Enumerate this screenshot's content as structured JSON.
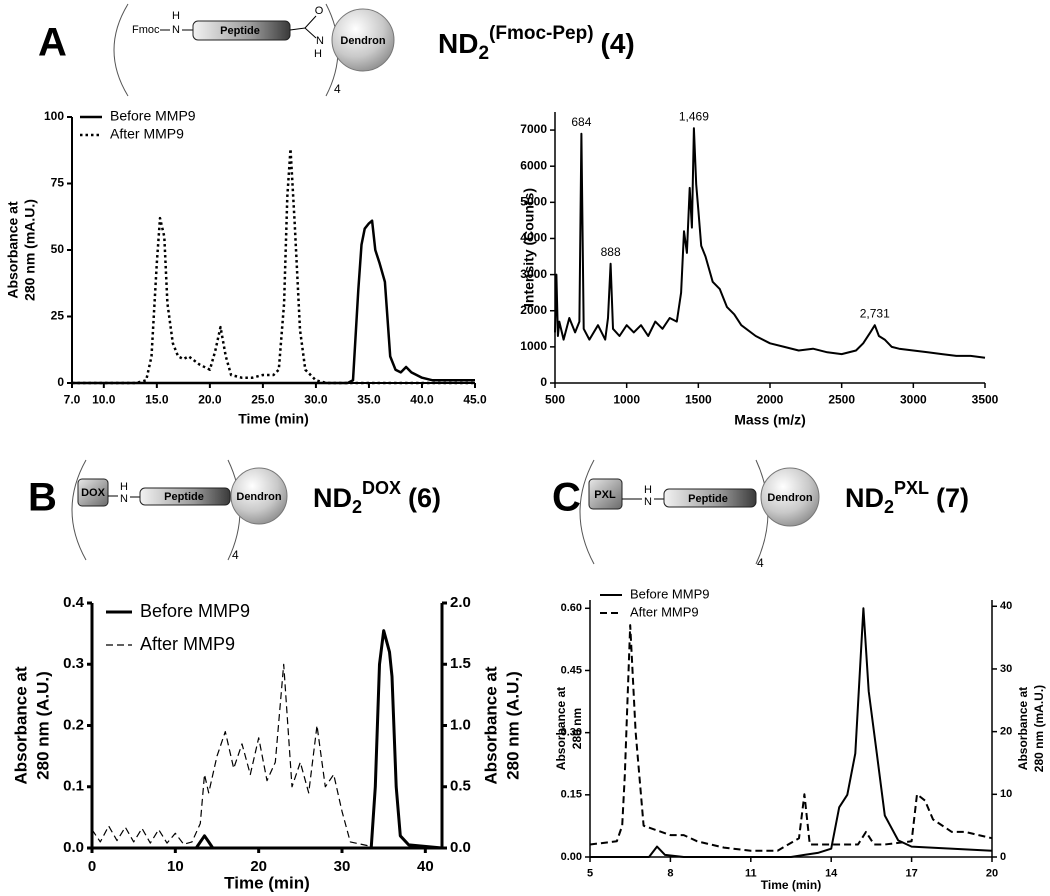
{
  "panels": [
    {
      "label": "A",
      "schematic": {
        "cap": "Fmoc",
        "n1": "N",
        "h1": "H",
        "peptide": "Peptide",
        "o": "O",
        "n2": "N",
        "h2": "H",
        "dendron": "Dendron",
        "count": "4"
      },
      "compound": {
        "base": "ND",
        "sub": "2",
        "sup": "(Fmoc-Pep)",
        "rest": "(4)"
      }
    },
    {
      "label": "B",
      "schematic": {
        "cap": "DOX",
        "h1": "H",
        "n1": "N",
        "peptide": "Peptide",
        "dendron": "Dendron",
        "count": "4"
      },
      "compound": {
        "base": "ND",
        "sub": "2",
        "sup": "DOX",
        "rest": "(6)"
      }
    },
    {
      "label": "C",
      "schematic": {
        "cap": "PXL",
        "h1": "H",
        "n1": "N",
        "peptide": "Peptide",
        "dendron": "Dendron",
        "count": "4"
      },
      "compound": {
        "base": "ND",
        "sub": "2",
        "sup": "PXL",
        "rest": "(7)"
      }
    }
  ],
  "chart_data": [
    {
      "type": "line",
      "x_label": "Time (min)",
      "y_label": [
        "Absorbance at",
        "280 nm (mA.U.)"
      ],
      "xlim": [
        7,
        45
      ],
      "xticks": [
        {
          "value": 7,
          "label": "7.0"
        },
        {
          "value": 10,
          "label": "10.0"
        },
        {
          "value": 15,
          "label": "15.0"
        },
        {
          "value": 20,
          "label": "20.0"
        },
        {
          "value": 25,
          "label": "25.0"
        },
        {
          "value": 30,
          "label": "30.0"
        },
        {
          "value": 35,
          "label": "35.0"
        },
        {
          "value": 40,
          "label": "40.0"
        },
        {
          "value": 45,
          "label": "45.0"
        }
      ],
      "ylim": [
        0,
        100
      ],
      "yticks": [
        0,
        25,
        50,
        75,
        100
      ],
      "legend": "upper left",
      "series": [
        {
          "name": "Before MMP9",
          "color": "#000000",
          "line_style": "solid",
          "x": [
            7,
            33,
            33.5,
            34,
            34.3,
            34.6,
            35,
            35.3,
            35.6,
            36,
            36.5,
            37,
            37.5,
            38,
            38.5,
            39,
            40,
            41,
            42,
            45
          ],
          "values": [
            0,
            0,
            1,
            35,
            52,
            58,
            60,
            61,
            50,
            45,
            38,
            10,
            5,
            4,
            6,
            4,
            2,
            1,
            1,
            1
          ]
        },
        {
          "name": "After MMP9",
          "color": "#000000",
          "line_style": "dotted",
          "x": [
            7,
            13,
            14,
            14.5,
            15,
            15.3,
            15.7,
            16,
            16.5,
            17,
            17.5,
            18,
            19,
            20,
            20.5,
            21,
            21.5,
            22,
            23,
            24,
            25,
            26,
            26.5,
            27,
            27.3,
            27.6,
            28,
            28.5,
            29,
            30,
            31,
            33,
            45
          ],
          "values": [
            0,
            0,
            1,
            10,
            45,
            62,
            55,
            30,
            15,
            10,
            9,
            10,
            7,
            5,
            12,
            21,
            10,
            3,
            2,
            2,
            3,
            3,
            5,
            30,
            70,
            88,
            60,
            20,
            5,
            1,
            0,
            0,
            0
          ]
        }
      ]
    },
    {
      "type": "line",
      "x_label": "Mass  (m/z)",
      "y_label": [
        "Intensity (Counts)"
      ],
      "xlim": [
        500,
        3500
      ],
      "xticks": [
        500,
        1000,
        1500,
        2000,
        2500,
        3000,
        3500
      ],
      "ylim": [
        0,
        7500
      ],
      "yticks": [
        0,
        1000,
        2000,
        3000,
        4000,
        5000,
        6000,
        7000
      ],
      "series": [
        {
          "name": "Spectrum",
          "color": "#000000",
          "line_style": "solid",
          "x": [
            500,
            510,
            520,
            530,
            560,
            600,
            640,
            670,
            684,
            700,
            740,
            800,
            850,
            870,
            888,
            905,
            950,
            1000,
            1050,
            1100,
            1150,
            1200,
            1250,
            1300,
            1350,
            1380,
            1400,
            1420,
            1440,
            1455,
            1469,
            1485,
            1500,
            1520,
            1550,
            1600,
            1650,
            1700,
            1750,
            1800,
            1900,
            2000,
            2100,
            2200,
            2300,
            2400,
            2500,
            2600,
            2650,
            2700,
            2731,
            2760,
            2800,
            2850,
            2900,
            3000,
            3100,
            3200,
            3300,
            3400,
            3500
          ],
          "values": [
            1400,
            3000,
            1300,
            1700,
            1200,
            1800,
            1400,
            1700,
            6900,
            1500,
            1200,
            1600,
            1200,
            1800,
            3300,
            1500,
            1300,
            1600,
            1400,
            1600,
            1300,
            1700,
            1500,
            1800,
            1700,
            2500,
            4200,
            3600,
            5400,
            4300,
            7050,
            5500,
            4800,
            3800,
            3500,
            2800,
            2600,
            2100,
            1900,
            1600,
            1300,
            1100,
            1000,
            900,
            950,
            850,
            800,
            900,
            1100,
            1400,
            1600,
            1300,
            1200,
            1000,
            950,
            900,
            850,
            800,
            750,
            750,
            700
          ]
        }
      ],
      "annotations": [
        {
          "label": "684",
          "x": 684,
          "y": 6900
        },
        {
          "label": "888",
          "x": 888,
          "y": 3300
        },
        {
          "label": "1,469",
          "x": 1469,
          "y": 7050
        },
        {
          "label": "2,731",
          "x": 2731,
          "y": 1600
        }
      ]
    },
    {
      "type": "line",
      "x_label": "Time (min)",
      "y_label": [
        "Absorbance at",
        "280 nm (A.U.)"
      ],
      "y2_label": [
        "Absorbance at",
        "280 nm (A.U.)"
      ],
      "xlim": [
        0,
        42
      ],
      "xticks": [
        0,
        10,
        20,
        30,
        40
      ],
      "ylim": [
        0,
        0.4
      ],
      "yticks": [
        {
          "value": 0,
          "label": "0.0"
        },
        0.1,
        0.2,
        0.3,
        0.4
      ],
      "y2lim": [
        0,
        2
      ],
      "y2ticks": [
        {
          "value": 0,
          "label": "0.0"
        },
        0.5,
        {
          "value": 1,
          "label": "1.0"
        },
        1.5,
        {
          "value": 2,
          "label": "2.0"
        }
      ],
      "legend": "upper left",
      "series": [
        {
          "name": "Before MMP9",
          "color": "#000000",
          "line_style": "solid",
          "x": [
            0,
            12.5,
            13,
            13.5,
            14,
            14.5,
            33.5,
            34,
            34.5,
            35,
            35.3,
            35.7,
            36,
            36.5,
            37,
            38,
            42
          ],
          "values": [
            0,
            0,
            0.01,
            0.02,
            0.01,
            0,
            0,
            0.1,
            0.3,
            0.355,
            0.34,
            0.32,
            0.28,
            0.1,
            0.02,
            0.005,
            0
          ]
        },
        {
          "name": "After MMP9",
          "color": "#000000",
          "line_style": "dashed",
          "axis": "y2",
          "x": [
            0,
            1,
            2,
            3,
            4,
            5,
            6,
            7,
            8,
            9,
            10,
            11,
            12,
            13,
            13.5,
            14,
            15,
            16,
            17,
            18,
            19,
            20,
            21,
            22,
            23,
            24,
            25,
            26,
            27,
            28,
            29,
            30,
            31,
            33,
            34,
            42
          ],
          "values": [
            0.15,
            0.05,
            0.18,
            0.06,
            0.17,
            0.05,
            0.16,
            0.04,
            0.15,
            0.04,
            0.12,
            0.03,
            0.05,
            0.2,
            0.6,
            0.45,
            0.75,
            0.95,
            0.65,
            0.85,
            0.6,
            0.9,
            0.55,
            0.7,
            1.5,
            0.5,
            0.7,
            0.45,
            1.0,
            0.5,
            0.6,
            0.3,
            0.05,
            0.02,
            0,
            0
          ]
        }
      ]
    },
    {
      "type": "line",
      "x_label": "Time (min)",
      "y_label": [
        "Absorbance at",
        "280 nm"
      ],
      "y2_label": [
        "Absorbance at",
        "280 nm (mA.U.)"
      ],
      "xlim": [
        5,
        20
      ],
      "xticks": [
        5,
        8,
        11,
        14,
        17,
        20
      ],
      "ylim": [
        0,
        0.62
      ],
      "yticks": [
        {
          "value": 0,
          "label": "0.00"
        },
        0.15,
        {
          "value": 0.3,
          "label": "0.30"
        },
        0.45,
        {
          "value": 0.6,
          "label": "0.60"
        }
      ],
      "y2lim": [
        0,
        41
      ],
      "y2ticks": [
        0,
        10,
        20,
        30,
        40
      ],
      "legend": "upper left",
      "series": [
        {
          "name": "Before MMP9",
          "color": "#000000",
          "line_style": "solid",
          "x": [
            5,
            7.2,
            7.5,
            7.8,
            8.5,
            12.5,
            13,
            13.5,
            14,
            14.3,
            14.6,
            14.9,
            15.2,
            15.4,
            15.7,
            16,
            16.5,
            17,
            20
          ],
          "values": [
            0,
            0,
            0.025,
            0.005,
            0,
            0,
            0.005,
            0.01,
            0.02,
            0.12,
            0.15,
            0.25,
            0.6,
            0.4,
            0.25,
            0.1,
            0.04,
            0.025,
            0.015
          ]
        },
        {
          "name": "After MMP9",
          "color": "#000000",
          "line_style": "dashed",
          "axis": "y2",
          "x": [
            5,
            6,
            6.2,
            6.3,
            6.5,
            6.7,
            7,
            8,
            8.5,
            9,
            10,
            11,
            12,
            12.8,
            13,
            13.2,
            14,
            15,
            15.3,
            15.6,
            16,
            17,
            17.2,
            17.5,
            17.8,
            18.5,
            19,
            19.5,
            20
          ],
          "values": [
            2,
            2.5,
            5,
            13,
            37,
            20,
            5,
            3.5,
            3.5,
            2.5,
            1.5,
            1,
            1,
            3,
            10,
            2,
            2,
            2,
            4,
            2,
            2,
            2.5,
            10,
            9,
            6,
            4,
            4,
            3.5,
            3
          ]
        }
      ]
    }
  ]
}
